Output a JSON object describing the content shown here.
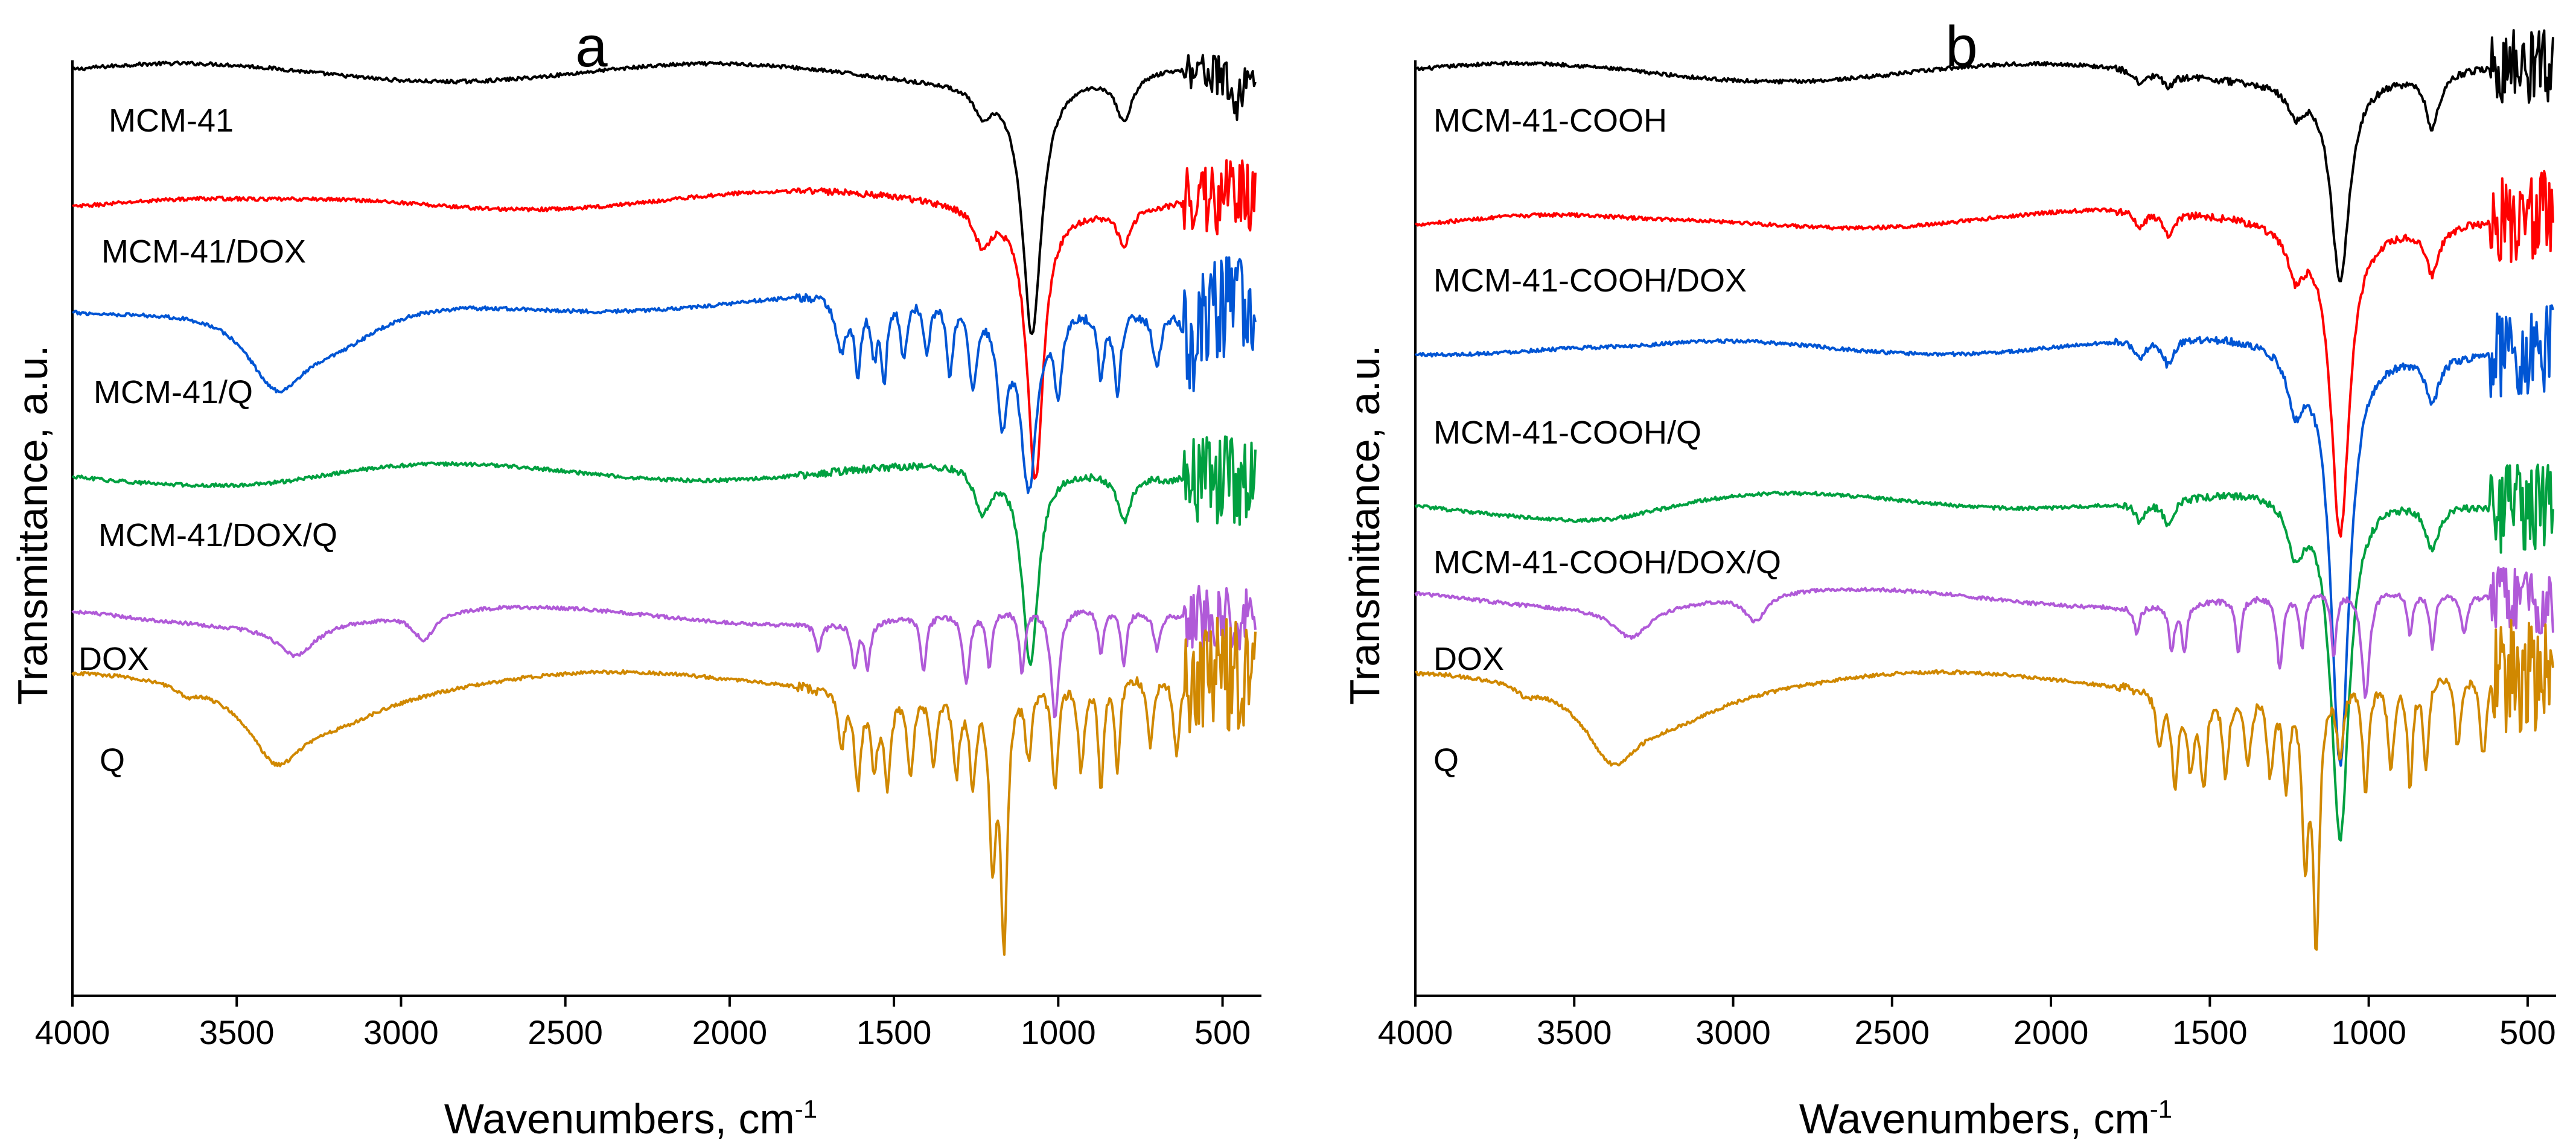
{
  "chart_data": [
    {
      "panel": "a",
      "type": "line",
      "title": "a",
      "xlabel": "Wavenumbers, cm",
      "xlabel_sup": "-1",
      "ylabel": "Transmittance, a.u.",
      "xlim": [
        4000,
        400
      ],
      "x_ticks": [
        4000,
        3500,
        3000,
        2500,
        2000,
        1500,
        1000,
        500
      ],
      "y_ticks": "none",
      "series": [
        {
          "name": "MCM-41",
          "color": "#000000",
          "baseline": 1.0,
          "bands": [
            [
              1230,
              0.03,
              30
            ],
            [
              1080,
              0.28,
              35
            ],
            [
              800,
              0.05,
              30
            ],
            [
              460,
              0.04,
              30
            ]
          ],
          "noise": 0.035
        },
        {
          "name": "MCM-41/DOX",
          "color": "#ff0000",
          "baseline": 0.86,
          "bands": [
            [
              3400,
              0.01,
              300
            ],
            [
              1230,
              0.04,
              30
            ],
            [
              1070,
              0.3,
              30
            ],
            [
              800,
              0.04,
              25
            ]
          ],
          "noise": 0.06
        },
        {
          "name": "MCM-41/Q",
          "color": "#0055d4",
          "baseline": 0.75,
          "bands": [
            [
              3380,
              0.08,
              110
            ],
            [
              3200,
              0.05,
              200
            ],
            [
              1660,
              0.06,
              20
            ],
            [
              1610,
              0.08,
              12
            ],
            [
              1560,
              0.06,
              12
            ],
            [
              1530,
              0.09,
              10
            ],
            [
              1470,
              0.07,
              12
            ],
            [
              1400,
              0.06,
              12
            ],
            [
              1330,
              0.08,
              12
            ],
            [
              1260,
              0.09,
              15
            ],
            [
              1170,
              0.12,
              20
            ],
            [
              1090,
              0.2,
              30
            ],
            [
              1000,
              0.08,
              15
            ],
            [
              870,
              0.07,
              12
            ],
            [
              820,
              0.09,
              12
            ],
            [
              700,
              0.06,
              15
            ],
            [
              600,
              0.07,
              15
            ]
          ],
          "noise": 0.08
        },
        {
          "name": "MCM-41/DOX/Q",
          "color": "#00a040",
          "baseline": 0.56,
          "bands": [
            [
              3400,
              0.01,
              300
            ],
            [
              1230,
              0.05,
              30
            ],
            [
              1085,
              0.22,
              30
            ],
            [
              800,
              0.05,
              25
            ]
          ],
          "noise": 0.07
        },
        {
          "name": "DOX",
          "color": "#b05ad8",
          "baseline": 0.4,
          "bands": [
            [
              3320,
              0.035,
              70
            ],
            [
              2930,
              0.03,
              40
            ],
            [
              1730,
              0.03,
              10
            ],
            [
              1620,
              0.05,
              10
            ],
            [
              1580,
              0.05,
              10
            ],
            [
              1410,
              0.06,
              10
            ],
            [
              1280,
              0.08,
              12
            ],
            [
              1210,
              0.06,
              10
            ],
            [
              1110,
              0.07,
              10
            ],
            [
              1010,
              0.12,
              15
            ],
            [
              870,
              0.05,
              10
            ],
            [
              800,
              0.06,
              10
            ],
            [
              700,
              0.04,
              12
            ]
          ],
          "noise": 0.05
        },
        {
          "name": "Q",
          "color": "#d08800",
          "baseline": 0.33,
          "bands": [
            [
              3650,
              0.01,
              30
            ],
            [
              3380,
              0.07,
              100
            ],
            [
              3200,
              0.03,
              200
            ],
            [
              1660,
              0.06,
              12
            ],
            [
              1610,
              0.1,
              12
            ],
            [
              1560,
              0.08,
              12
            ],
            [
              1520,
              0.1,
              12
            ],
            [
              1450,
              0.09,
              12
            ],
            [
              1380,
              0.08,
              12
            ],
            [
              1310,
              0.09,
              12
            ],
            [
              1260,
              0.1,
              12
            ],
            [
              1200,
              0.18,
              12
            ],
            [
              1165,
              0.28,
              12
            ],
            [
              1090,
              0.08,
              12
            ],
            [
              1010,
              0.12,
              12
            ],
            [
              930,
              0.1,
              12
            ],
            [
              870,
              0.12,
              10
            ],
            [
              820,
              0.1,
              10
            ],
            [
              720,
              0.08,
              12
            ],
            [
              640,
              0.09,
              12
            ]
          ],
          "noise": 0.09
        }
      ]
    },
    {
      "panel": "b",
      "type": "line",
      "title": "b",
      "xlabel": "Wavenumbers, cm",
      "xlabel_sup": "-1",
      "ylabel": "Transmittance, a.u.",
      "xlim": [
        4000,
        420
      ],
      "x_ticks": [
        4000,
        3500,
        3000,
        2500,
        2000,
        1500,
        1000,
        500
      ],
      "y_ticks": "none",
      "series": [
        {
          "name": "MCM-41-COOH",
          "color": "#000000",
          "baseline": 1.0,
          "bands": [
            [
              1720,
              0.015,
              20
            ],
            [
              1630,
              0.015,
              20
            ],
            [
              1230,
              0.03,
              30
            ],
            [
              1090,
              0.22,
              35
            ],
            [
              800,
              0.06,
              25
            ]
          ],
          "noise": 0.06
        },
        {
          "name": "MCM-41-COOH/DOX",
          "color": "#ff0000",
          "baseline": 0.84,
          "bands": [
            [
              3300,
              0.01,
              300
            ],
            [
              1720,
              0.02,
              20
            ],
            [
              1630,
              0.025,
              20
            ],
            [
              1230,
              0.05,
              30
            ],
            [
              1090,
              0.34,
              35
            ],
            [
              800,
              0.05,
              25
            ]
          ],
          "noise": 0.07
        },
        {
          "name": "MCM-41-COOH/Q",
          "color": "#0055d4",
          "baseline": 0.7,
          "bands": [
            [
              3300,
              0.01,
              300
            ],
            [
              1720,
              0.02,
              20
            ],
            [
              1630,
              0.03,
              20
            ],
            [
              1230,
              0.06,
              30
            ],
            [
              1090,
              0.46,
              35
            ],
            [
              800,
              0.05,
              25
            ]
          ],
          "noise": 0.07
        },
        {
          "name": "MCM-41-COOH/DOX/Q",
          "color": "#00a040",
          "baseline": 0.53,
          "bands": [
            [
              3400,
              0.02,
              300
            ],
            [
              1720,
              0.02,
              20
            ],
            [
              1630,
              0.03,
              20
            ],
            [
              1230,
              0.06,
              30
            ],
            [
              1090,
              0.38,
              35
            ],
            [
              800,
              0.05,
              25
            ]
          ],
          "noise": 0.07
        },
        {
          "name": "DOX",
          "color": "#b05ad8",
          "baseline": 0.42,
          "bands": [
            [
              3320,
              0.035,
              70
            ],
            [
              2930,
              0.03,
              40
            ],
            [
              1730,
              0.03,
              10
            ],
            [
              1620,
              0.05,
              10
            ],
            [
              1580,
              0.05,
              10
            ],
            [
              1410,
              0.06,
              10
            ],
            [
              1280,
              0.08,
              12
            ],
            [
              1210,
              0.06,
              10
            ],
            [
              1110,
              0.07,
              10
            ],
            [
              1010,
              0.12,
              15
            ],
            [
              870,
              0.05,
              10
            ],
            [
              800,
              0.06,
              10
            ],
            [
              700,
              0.04,
              12
            ]
          ],
          "noise": 0.05
        },
        {
          "name": "Q",
          "color": "#d08800",
          "baseline": 0.33,
          "bands": [
            [
              3650,
              0.01,
              30
            ],
            [
              3380,
              0.07,
              100
            ],
            [
              3200,
              0.03,
              200
            ],
            [
              1660,
              0.06,
              12
            ],
            [
              1610,
              0.1,
              12
            ],
            [
              1560,
              0.08,
              12
            ],
            [
              1520,
              0.1,
              12
            ],
            [
              1450,
              0.09,
              12
            ],
            [
              1380,
              0.08,
              12
            ],
            [
              1310,
              0.09,
              12
            ],
            [
              1260,
              0.1,
              12
            ],
            [
              1200,
              0.18,
              12
            ],
            [
              1165,
              0.28,
              12
            ],
            [
              1090,
              0.08,
              12
            ],
            [
              1010,
              0.12,
              12
            ],
            [
              930,
              0.1,
              12
            ],
            [
              870,
              0.12,
              10
            ],
            [
              820,
              0.1,
              10
            ],
            [
              720,
              0.08,
              12
            ],
            [
              640,
              0.09,
              12
            ]
          ],
          "noise": 0.09
        }
      ]
    }
  ]
}
